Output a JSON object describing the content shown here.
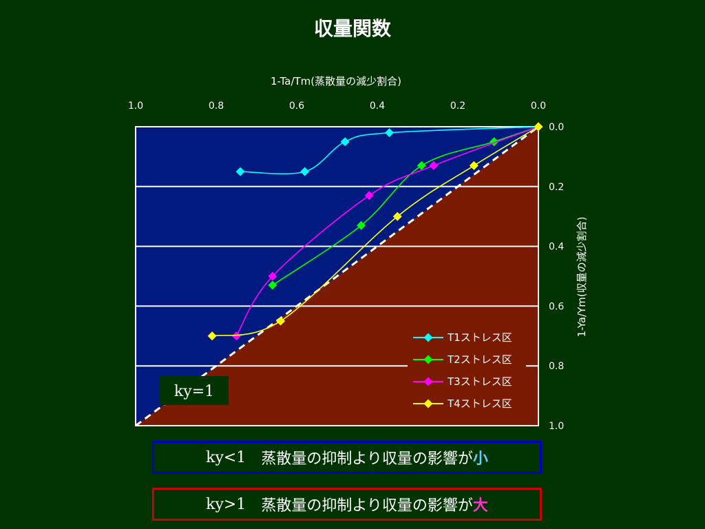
{
  "title": "収量関数",
  "notes": {
    "small": {
      "ky": "ky<1",
      "text": "蒸散量の抑制より収量の影響が",
      "emph": "小"
    },
    "large": {
      "ky": "ky>1",
      "text": "蒸散量の抑制より収量の影響が",
      "emph": "大"
    }
  },
  "chart_data": {
    "type": "line",
    "xlabel": "1-Ta/Tm(蒸散量の減少割合)",
    "ylabel": "1-Ya/Ym(収量の減少割合)",
    "xlim": [
      1.0,
      0.0
    ],
    "ylim": [
      0.0,
      1.0
    ],
    "x_reversed": true,
    "y_reversed": true,
    "x_ticks": [
      "1.0",
      "0.8",
      "0.6",
      "0.4",
      "0.2",
      "0.0"
    ],
    "y_ticks": [
      "0.0",
      "0.2",
      "0.4",
      "0.6",
      "0.8",
      "1.0"
    ],
    "grid": "horizontal",
    "legend_position": "bottom-right",
    "series": [
      {
        "name": "T1ストレス区",
        "color": "#00ffff",
        "x": [
          0.0,
          0.37,
          0.48,
          0.58,
          0.74
        ],
        "y": [
          0.0,
          0.02,
          0.05,
          0.15,
          0.15
        ]
      },
      {
        "name": "T2ストレス区",
        "color": "#00ff00",
        "x": [
          0.0,
          0.11,
          0.29,
          0.44,
          0.66
        ],
        "y": [
          0.0,
          0.05,
          0.13,
          0.33,
          0.53
        ]
      },
      {
        "name": "T3ストレス区",
        "color": "#ff00ff",
        "x": [
          0.0,
          0.26,
          0.42,
          0.66,
          0.75
        ],
        "y": [
          0.0,
          0.13,
          0.23,
          0.5,
          0.7
        ]
      },
      {
        "name": "T4ストレス区",
        "color": "#ffff00",
        "x": [
          0.0,
          0.16,
          0.35,
          0.64,
          0.81
        ],
        "y": [
          0.0,
          0.13,
          0.3,
          0.65,
          0.7
        ]
      }
    ],
    "reference_line": {
      "label": "ky=1",
      "x": [
        1.0,
        0.0
      ],
      "y": [
        1.0,
        0.0
      ]
    },
    "colors": {
      "background": "#003300",
      "region_ky_less_than_1": "#001a80",
      "region_ky_greater_than_1": "#7a1a00",
      "gridline": "#ffffff"
    }
  }
}
